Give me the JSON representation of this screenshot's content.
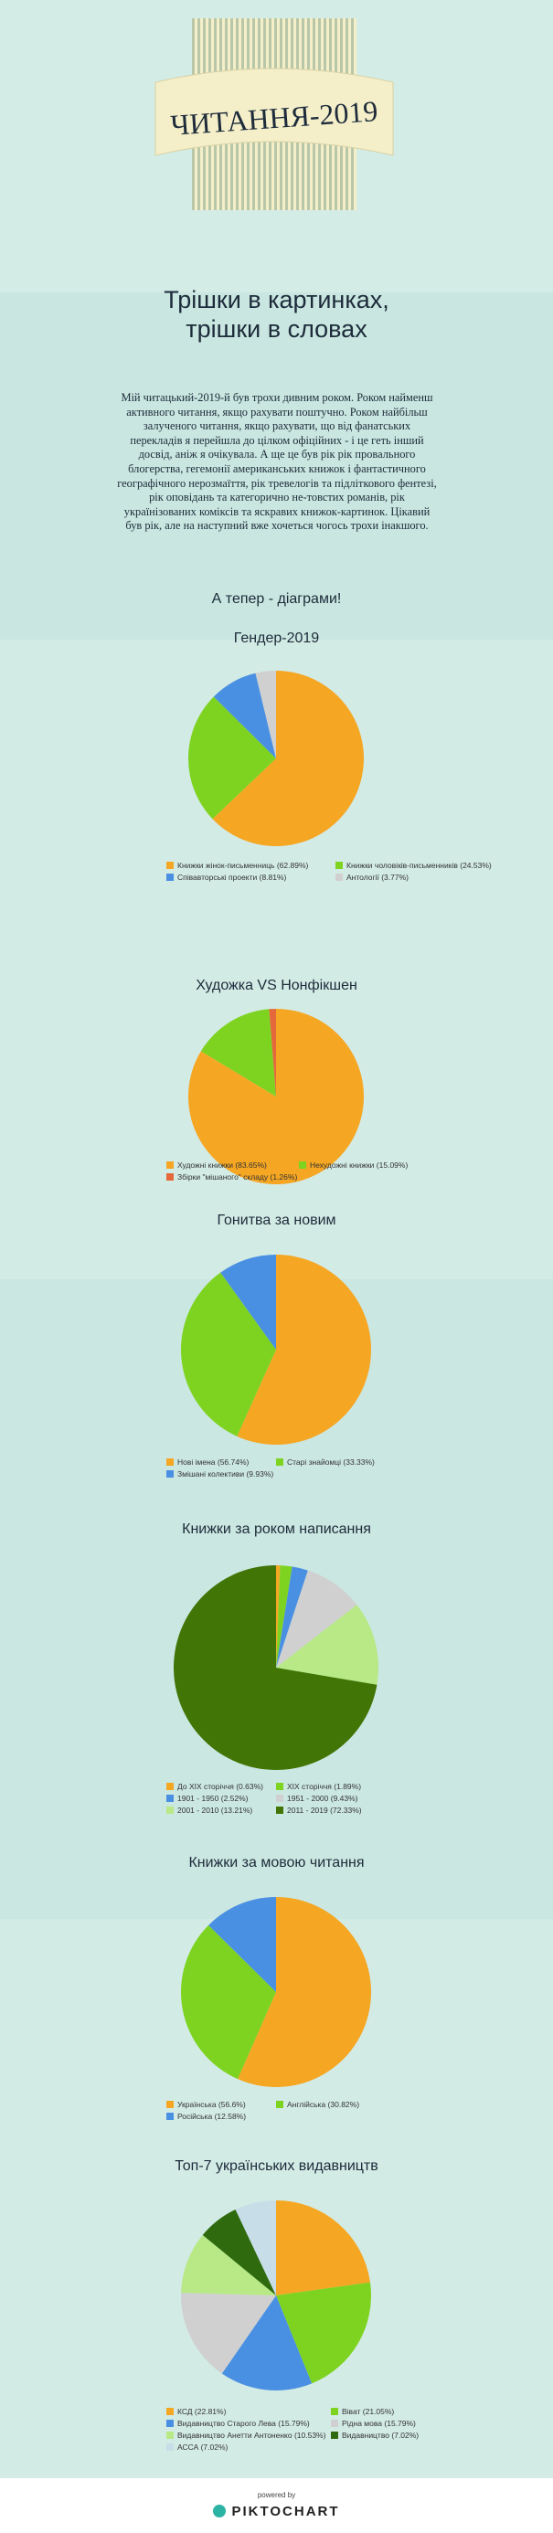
{
  "header": {
    "title": "ЧИТАННЯ-2019",
    "subtitle_line1": "Трішки в картинках,",
    "subtitle_line2": "трішки в словах",
    "intro": "Мій читацький-2019-й був трохи дивним роком. Роком найменш активного читання, якщо рахувати поштучно. Роком найбільш залученого читання, якщо рахувати, що від фанатських перекладів я перейшла до цілком офіційних - і це геть інший досвід, аніж я очікувала. А ще це був рік рік провального блогерства, гегемонії американських книжок і фантастичного географічного нерозмаїття, рік тревелогів та підліткового фентезі, рік оповідань та категорично не-товстих романів, рік українізованих коміксів та яскравих книжок-картинок. Цікавий був рік, але на наступний вже хочеться чогось трохи інакшого.",
    "diagrams_heading": "А тепер - діаграми!"
  },
  "colors": {
    "orange": "#f5a623",
    "green": "#7ed321",
    "blue": "#4a90e2",
    "lightgray": "#d0d0d0",
    "red": "#e5683b",
    "darkgreen": "#417505",
    "lightgreen": "#b8e986",
    "darkgreen2": "#2f6b0e",
    "lightblue": "#c7dde8",
    "ribbon": "#f4efc9",
    "navy": "#1d2b3a"
  },
  "chart_data": [
    {
      "type": "pie",
      "title": "Гендер-2019",
      "labels": [
        "Книжки жінок-письменниць (62.89%)",
        "Книжки чоловіків-письменників (24.53%)",
        "Співавторські проекти (8.81%)",
        "Антології (3.77%)"
      ],
      "values": [
        62.89,
        24.53,
        8.81,
        3.77
      ],
      "colors": [
        "#f5a623",
        "#7ed321",
        "#4a90e2",
        "#d0d0d0"
      ]
    },
    {
      "type": "pie",
      "title": "Художка VS Нонфікшен",
      "labels": [
        "Художні книжки (83.65%)",
        "Нехудожні книжки (15.09%)",
        "Збірки \"мішаного\" складу (1.26%)"
      ],
      "values": [
        83.65,
        15.09,
        1.26
      ],
      "colors": [
        "#f5a623",
        "#7ed321",
        "#e5683b"
      ]
    },
    {
      "type": "pie",
      "title": "Гонитва за новим",
      "labels": [
        "Нові імена (56.74%)",
        "Старі знайомці (33.33%)",
        "Змішані колективи (9.93%)"
      ],
      "values": [
        56.74,
        33.33,
        9.93
      ],
      "colors": [
        "#f5a623",
        "#7ed321",
        "#4a90e2"
      ]
    },
    {
      "type": "pie",
      "title": "Книжки за роком написання",
      "labels": [
        "До XIX сторіччя (0.63%)",
        "XIX сторіччя (1.89%)",
        "1901 - 1950 (2.52%)",
        "1951 - 2000 (9.43%)",
        "2001 - 2010 (13.21%)",
        "2011 - 2019 (72.33%)"
      ],
      "values": [
        0.63,
        1.89,
        2.52,
        9.43,
        13.21,
        72.33
      ],
      "colors": [
        "#f5a623",
        "#7ed321",
        "#4a90e2",
        "#d0d0d0",
        "#b8e986",
        "#417505"
      ]
    },
    {
      "type": "pie",
      "title": "Книжки за мовою читання",
      "labels": [
        "Українська (56.6%)",
        "Англійська (30.82%)",
        "Російська (12.58%)"
      ],
      "values": [
        56.6,
        30.82,
        12.58
      ],
      "colors": [
        "#f5a623",
        "#7ed321",
        "#4a90e2"
      ]
    },
    {
      "type": "pie",
      "title": "Топ-7 українських видавництв",
      "labels": [
        "КСД (22.81%)",
        "Віват (21.05%)",
        "Видавництво Старого Лева (15.79%)",
        "Рідна мова (15.79%)",
        "Видавництво Анетти Антоненко (10.53%)",
        "Видавництво (7.02%)",
        "АССА (7.02%)"
      ],
      "values": [
        22.81,
        21.05,
        15.79,
        15.79,
        10.53,
        7.02,
        7.02
      ],
      "colors": [
        "#f5a623",
        "#7ed321",
        "#4a90e2",
        "#d0d0d0",
        "#b8e986",
        "#2f6b0e",
        "#c7dde8"
      ]
    }
  ],
  "footer": {
    "powered_by": "powered by",
    "brand": "PIKTOCHART"
  }
}
